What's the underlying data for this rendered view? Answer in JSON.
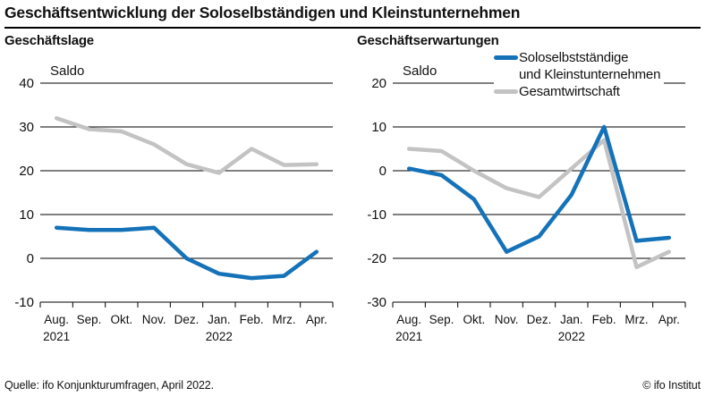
{
  "title": "Geschäftsentwicklung der Soloselbständigen und Kleinstunternehmen",
  "footer": {
    "source": "Quelle: ifo Konjunkturumfragen, April 2022.",
    "copyright": "© ifo Institut"
  },
  "legend": {
    "position": "top-right-of-second-chart",
    "items": [
      {
        "label": "Soloselbstständige\nund Kleinstunternehmen",
        "color": "#1572b8"
      },
      {
        "label": "Gesamtwirtschaft",
        "color": "#c3c3c3"
      }
    ]
  },
  "colors": {
    "series_blue": "#1572b8",
    "series_gray": "#c3c3c3",
    "grid": "#000000",
    "text": "#111111"
  },
  "chart_data": [
    {
      "type": "line",
      "title": "Geschäftslage",
      "axis_label": "Saldo",
      "categories": [
        "Aug.",
        "Sep.",
        "Okt.",
        "Nov.",
        "Dez.",
        "Jan.",
        "Feb.",
        "Mrz.",
        "Apr."
      ],
      "year_labels": [
        {
          "index": 0,
          "text": "2021"
        },
        {
          "index": 5,
          "text": "2022"
        }
      ],
      "ylim": [
        -10,
        40
      ],
      "ytick_step": 10,
      "grid": true,
      "series": [
        {
          "name": "Soloselbstständige und Kleinstunternehmen",
          "color": "#1572b8",
          "values": [
            7,
            6.5,
            6.5,
            7,
            0,
            -3.5,
            -4.5,
            -4,
            1.5
          ]
        },
        {
          "name": "Gesamtwirtschaft",
          "color": "#c3c3c3",
          "values": [
            32,
            29.5,
            29,
            26,
            21.5,
            19.5,
            25,
            21.3,
            21.5
          ]
        }
      ]
    },
    {
      "type": "line",
      "title": "Geschäftserwartungen",
      "axis_label": "Saldo",
      "categories": [
        "Aug.",
        "Sep.",
        "Okt.",
        "Nov.",
        "Dez.",
        "Jan.",
        "Feb.",
        "Mrz.",
        "Apr."
      ],
      "year_labels": [
        {
          "index": 0,
          "text": "2021"
        },
        {
          "index": 5,
          "text": "2022"
        }
      ],
      "ylim": [
        -30,
        20
      ],
      "ytick_step": 10,
      "grid": true,
      "series": [
        {
          "name": "Soloselbstständige und Kleinstunternehmen",
          "color": "#1572b8",
          "values": [
            0.5,
            -1,
            -6.5,
            -18.5,
            -15,
            -5.5,
            10,
            -16,
            -15.3
          ]
        },
        {
          "name": "Gesamtwirtschaft",
          "color": "#c3c3c3",
          "values": [
            5,
            4.5,
            0,
            -4,
            -6,
            0.5,
            7,
            -22,
            -18.5
          ]
        }
      ]
    }
  ]
}
